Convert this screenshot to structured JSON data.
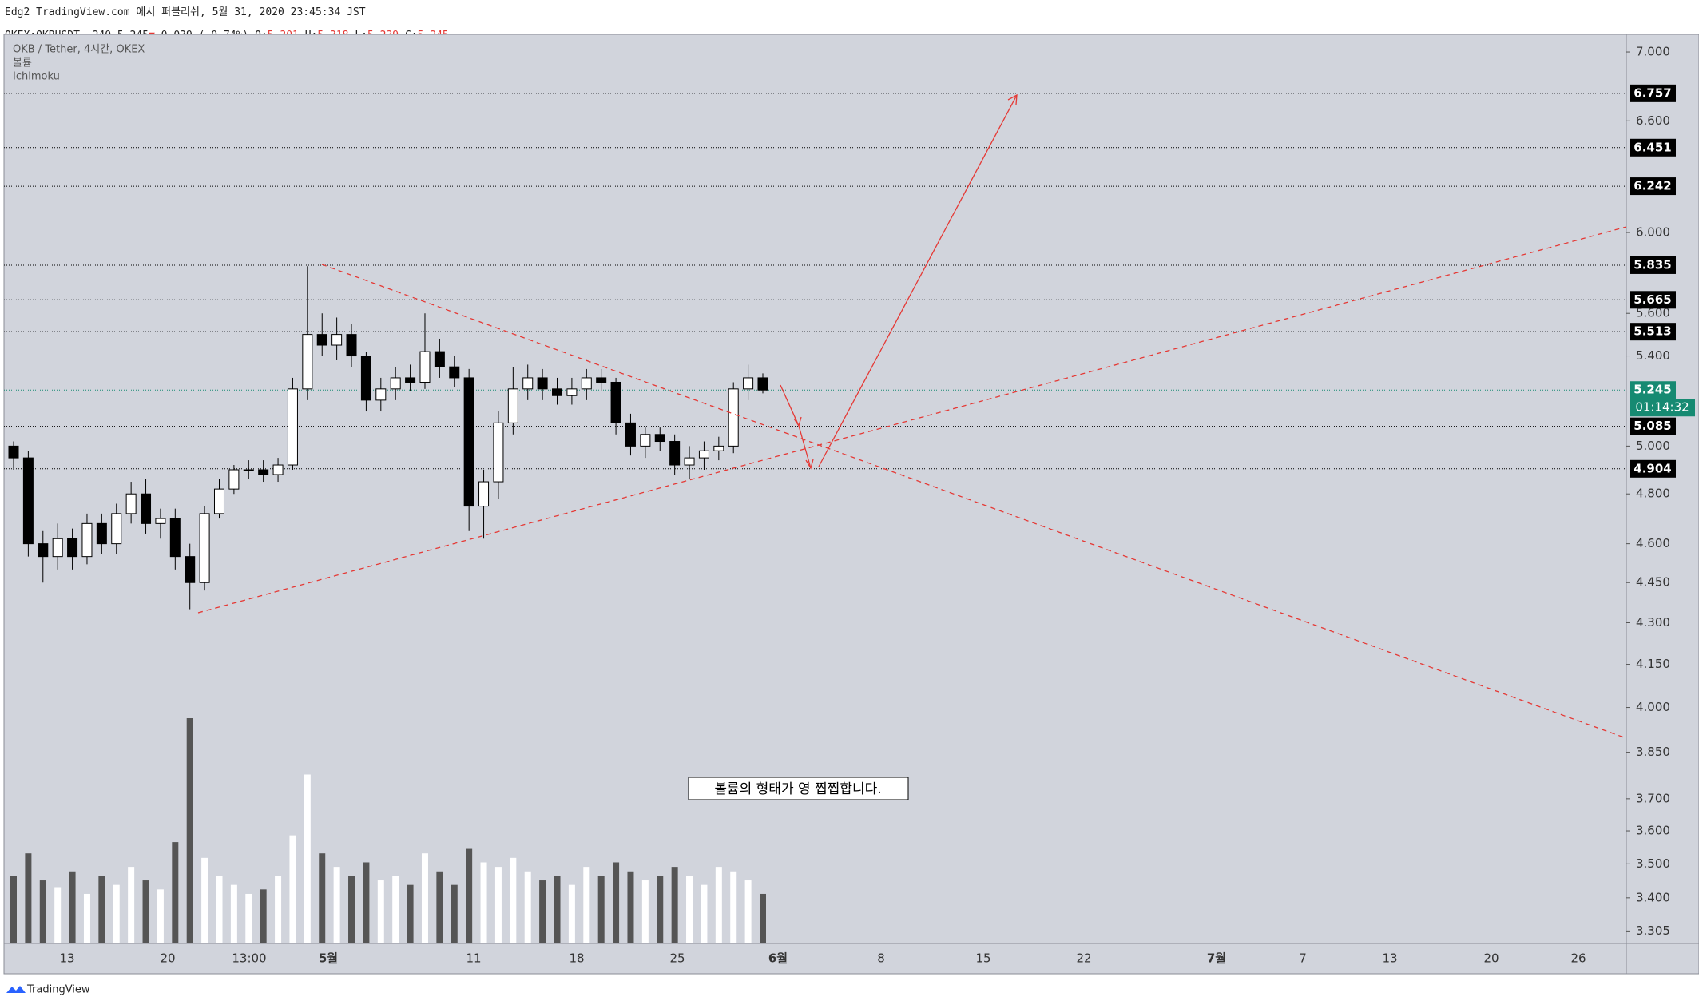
{
  "header": {
    "published": "Edg2 TradingView.com 에서 퍼블리쉬, 5월 31, 2020 23:45:34 JST",
    "symbol": "OKEX:OKBUSDT, 240",
    "last": "5.245",
    "arrow": "▼",
    "change": "−0.039 (−0.74%)",
    "ohlc": [
      {
        "label": "O:",
        "value": "5.301"
      },
      {
        "label": "H:",
        "value": "5.318"
      },
      {
        "label": "L:",
        "value": "5.239"
      },
      {
        "label": "C:",
        "value": "5.245"
      }
    ]
  },
  "chart_data": {
    "type": "candlestick",
    "legend": [
      "OKB / Tether, 4시간, OKEX",
      "볼륨",
      "Ichimoku"
    ],
    "annotation": "볼륨의 형태가 영 찝찝합니다.",
    "log_scale": true,
    "ylim": [
      3.27,
      7.106
    ],
    "yticks": [
      {
        "value": 7,
        "label": "7.000"
      },
      {
        "value": 6.6,
        "label": "6.600"
      },
      {
        "value": 6,
        "label": "6.000"
      },
      {
        "value": 5.6,
        "label": "5.600"
      },
      {
        "value": 5.4,
        "label": "5.400"
      },
      {
        "value": 5,
        "label": "5.000"
      },
      {
        "value": 4.8,
        "label": "4.800"
      },
      {
        "value": 4.6,
        "label": "4.600"
      },
      {
        "value": 4.45,
        "label": "4.450"
      },
      {
        "value": 4.3,
        "label": "4.300"
      },
      {
        "value": 4.15,
        "label": "4.150"
      },
      {
        "value": 4,
        "label": "4.000"
      },
      {
        "value": 3.85,
        "label": "3.850"
      },
      {
        "value": 3.7,
        "label": "3.700"
      },
      {
        "value": 3.6,
        "label": "3.600"
      },
      {
        "value": 3.5,
        "label": "3.500"
      },
      {
        "value": 3.4,
        "label": "3.400"
      },
      {
        "value": 3.305,
        "label": "3.305"
      }
    ],
    "x_labels": [
      "13",
      "20",
      "13:00",
      "5월",
      "11",
      "18",
      "25",
      "6월",
      "8",
      "15",
      "22",
      "7월",
      "7",
      "13",
      "20",
      "26"
    ],
    "price_levels": [
      6.757,
      6.451,
      6.242,
      5.835,
      5.665,
      5.513,
      5.085,
      4.904
    ],
    "current_price": 5.245,
    "countdown": "01:14:32",
    "up_color": "#ffffff",
    "down_color": "#000000",
    "level_color": "#000000",
    "current_color": "#168a72",
    "series": [
      {
        "name": "OKB / Tether",
        "open": [
          5.0,
          4.95,
          4.6,
          4.55,
          4.62,
          4.55,
          4.68,
          4.6,
          4.72,
          4.8,
          4.68,
          4.7,
          4.55,
          4.45,
          4.72,
          4.82,
          4.9,
          4.9,
          4.88,
          4.92,
          5.25,
          5.5,
          5.45,
          5.5,
          5.4,
          5.2,
          5.25,
          5.3,
          5.28,
          5.42,
          5.35,
          5.3,
          4.75,
          4.85,
          5.1,
          5.25,
          5.3,
          5.25,
          5.22,
          5.25,
          5.3,
          5.28,
          5.1,
          5.0,
          5.05,
          5.02,
          4.92,
          4.95,
          4.98,
          5.0,
          5.25,
          5.3
        ],
        "high": [
          5.02,
          4.98,
          4.65,
          4.68,
          4.66,
          4.72,
          4.72,
          4.76,
          4.85,
          4.86,
          4.74,
          4.74,
          4.6,
          4.75,
          4.86,
          4.92,
          4.94,
          4.94,
          4.95,
          5.3,
          5.83,
          5.6,
          5.58,
          5.55,
          5.42,
          5.3,
          5.35,
          5.36,
          5.6,
          5.48,
          5.4,
          5.34,
          4.9,
          5.15,
          5.35,
          5.36,
          5.34,
          5.3,
          5.3,
          5.34,
          5.34,
          5.3,
          5.14,
          5.08,
          5.08,
          5.05,
          5.0,
          5.02,
          5.04,
          5.28,
          5.36,
          5.32
        ],
        "low": [
          4.9,
          4.55,
          4.45,
          4.5,
          4.5,
          4.52,
          4.56,
          4.56,
          4.68,
          4.64,
          4.62,
          4.5,
          4.35,
          4.42,
          4.7,
          4.8,
          4.86,
          4.85,
          4.85,
          4.9,
          5.2,
          5.4,
          5.38,
          5.35,
          5.15,
          5.15,
          5.2,
          5.24,
          5.25,
          5.3,
          5.26,
          4.65,
          4.62,
          4.78,
          5.05,
          5.2,
          5.2,
          5.18,
          5.18,
          5.2,
          5.24,
          5.05,
          4.96,
          4.95,
          4.98,
          4.88,
          4.86,
          4.9,
          4.94,
          4.97,
          5.2,
          5.23
        ],
        "close": [
          4.95,
          4.6,
          4.55,
          4.62,
          4.55,
          4.68,
          4.6,
          4.72,
          4.8,
          4.68,
          4.7,
          4.55,
          4.45,
          4.72,
          4.82,
          4.9,
          4.9,
          4.88,
          4.92,
          5.25,
          5.5,
          5.45,
          5.5,
          5.4,
          5.2,
          5.25,
          5.3,
          5.28,
          5.42,
          5.35,
          5.3,
          4.75,
          4.85,
          5.1,
          5.25,
          5.3,
          5.25,
          5.22,
          5.25,
          5.3,
          5.28,
          5.1,
          5.0,
          5.05,
          5.02,
          4.92,
          4.95,
          4.98,
          5.0,
          5.25,
          5.3,
          5.245
        ],
        "volume": [
          30,
          40,
          28,
          25,
          32,
          22,
          30,
          26,
          34,
          28,
          24,
          45,
          100,
          38,
          30,
          26,
          22,
          24,
          30,
          48,
          75,
          40,
          34,
          30,
          36,
          28,
          30,
          26,
          40,
          32,
          26,
          42,
          36,
          34,
          38,
          32,
          28,
          30,
          26,
          34,
          30,
          36,
          32,
          28,
          30,
          34,
          30,
          26,
          34,
          32,
          28,
          22
        ]
      }
    ]
  }
}
